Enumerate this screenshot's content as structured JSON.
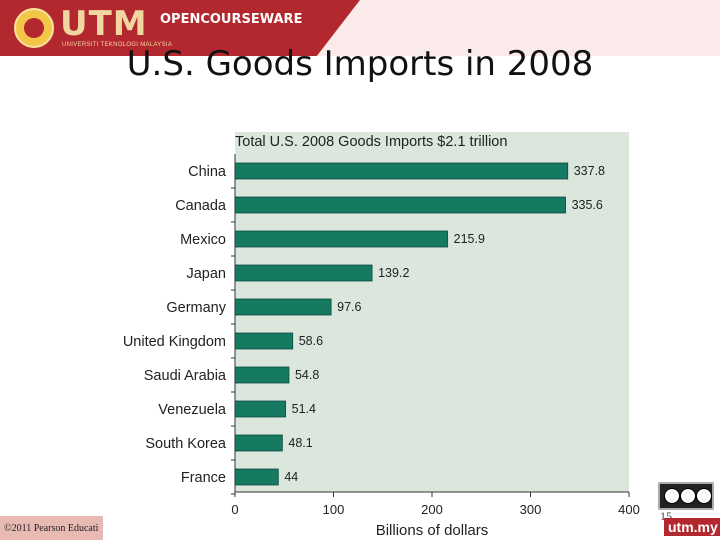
{
  "header": {
    "logo_text": "UTM",
    "logo_subtitle": "UNIVERSITI TEKNOLOGI MALAYSIA",
    "ocw_label": "OPENCOURSEWARE"
  },
  "slide": {
    "title": "U.S. Goods Imports in 2008",
    "number": "15",
    "copyright": "©2011 Pearson Educati",
    "site_label": "utm.my"
  },
  "colors": {
    "bar": "#167a62",
    "plot_bg": "#dbe7dc",
    "brand_red": "#b3282e"
  },
  "chart_data": {
    "type": "bar",
    "orientation": "horizontal",
    "title": "Total U.S. 2008 Goods Imports $2.1 trillion",
    "xlabel": "Billions of dollars",
    "ylabel": "",
    "xlim": [
      0,
      400
    ],
    "xticks": [
      0,
      100,
      200,
      300,
      400
    ],
    "grid": false,
    "categories": [
      "China",
      "Canada",
      "Mexico",
      "Japan",
      "Germany",
      "United Kingdom",
      "Saudi Arabia",
      "Venezuela",
      "South Korea",
      "France"
    ],
    "values": [
      337.8,
      335.6,
      215.9,
      139.2,
      97.6,
      58.6,
      54.8,
      51.4,
      48.1,
      44
    ],
    "value_labels": [
      "337.8",
      "335.6",
      "215.9",
      "139.2",
      "97.6",
      "58.6",
      "54.8",
      "51.4",
      "48.1",
      "44"
    ]
  }
}
